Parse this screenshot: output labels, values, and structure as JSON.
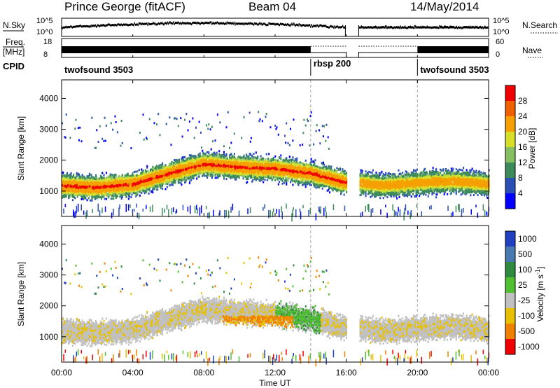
{
  "header": {
    "radar": "Prince George (fitACF)",
    "beam": "Beam 04",
    "date": "14/May/2014"
  },
  "noise_panel": {
    "left_label": "N.Sky",
    "right_label": "N.Search",
    "left_ticks": [
      "10^5",
      "10^0"
    ],
    "right_ticks": [
      "10^5",
      "10^0"
    ]
  },
  "freq_panel": {
    "left_label_line1": "Freq.",
    "left_label_line2": "[MHz]",
    "right_label": "Nave",
    "left_ticks": [
      "18",
      "8"
    ],
    "right_ticks": [
      "60",
      "0"
    ]
  },
  "cpid": {
    "label": "CPID",
    "segments": [
      {
        "name": "twofsound 3503",
        "start": 0.0,
        "end": 14.0
      },
      {
        "name": "rbsp 200",
        "start": 14.0,
        "end": 20.0
      },
      {
        "name": "twofsound 3503",
        "start": 20.0,
        "end": 24.0
      }
    ]
  },
  "time_axis": {
    "title": "Time UT",
    "ticks": [
      "00:00",
      "04:00",
      "08:00",
      "12:00",
      "16:00",
      "20:00",
      "00:00"
    ]
  },
  "chart_data": [
    {
      "type": "heatmap",
      "title": "",
      "xlabel": "Time UT",
      "ylabel": "Slant Range [km]",
      "xlim": [
        0,
        24
      ],
      "ylim": [
        180,
        4600
      ],
      "yticks": [
        1000,
        2000,
        3000,
        4000
      ],
      "data_gap_hours": [
        16.0,
        16.7
      ],
      "colorbar": {
        "title": "Power [dB]",
        "ticks": [
          "28",
          "24",
          "20",
          "16",
          "12",
          "8",
          "4"
        ],
        "levels": [
          0,
          4,
          8,
          12,
          16,
          20,
          24,
          28,
          32
        ],
        "colors": [
          "#0000ff",
          "#2a4fb6",
          "#3c8a5a",
          "#86c060",
          "#d8df28",
          "#f5a000",
          "#f06000",
          "#f00000"
        ]
      },
      "scatter_bands": [
        {
          "x": [
            0,
            2,
            4,
            6,
            8,
            10,
            12,
            14,
            16
          ],
          "center_km": [
            1200,
            1150,
            1250,
            1600,
            1900,
            1800,
            1750,
            1600,
            1300
          ],
          "peak_db": 28
        },
        {
          "x": [
            16.7,
            18,
            20,
            22,
            24
          ],
          "center_km": [
            1300,
            1200,
            1300,
            1350,
            1250
          ],
          "peak_db": 24
        }
      ]
    },
    {
      "type": "heatmap",
      "title": "",
      "xlabel": "Time UT",
      "ylabel": "Slant Range [km]",
      "xlim": [
        0,
        24
      ],
      "ylim": [
        180,
        4600
      ],
      "yticks": [
        1000,
        2000,
        3000,
        4000
      ],
      "data_gap_hours": [
        16.0,
        16.7
      ],
      "colorbar": {
        "title": "Velocity [m s-1]",
        "ticks": [
          "1000",
          "500",
          "100",
          "25",
          "-25",
          "-100",
          "-500",
          "-1000"
        ],
        "levels": [
          1000,
          500,
          100,
          25,
          -25,
          -100,
          -500,
          -1000
        ],
        "colors": [
          "#2040c0",
          "#4a78b0",
          "#2e8a3e",
          "#50c030",
          "#c0c0c0",
          "#e8c000",
          "#f08000",
          "#f00000"
        ]
      }
    }
  ]
}
